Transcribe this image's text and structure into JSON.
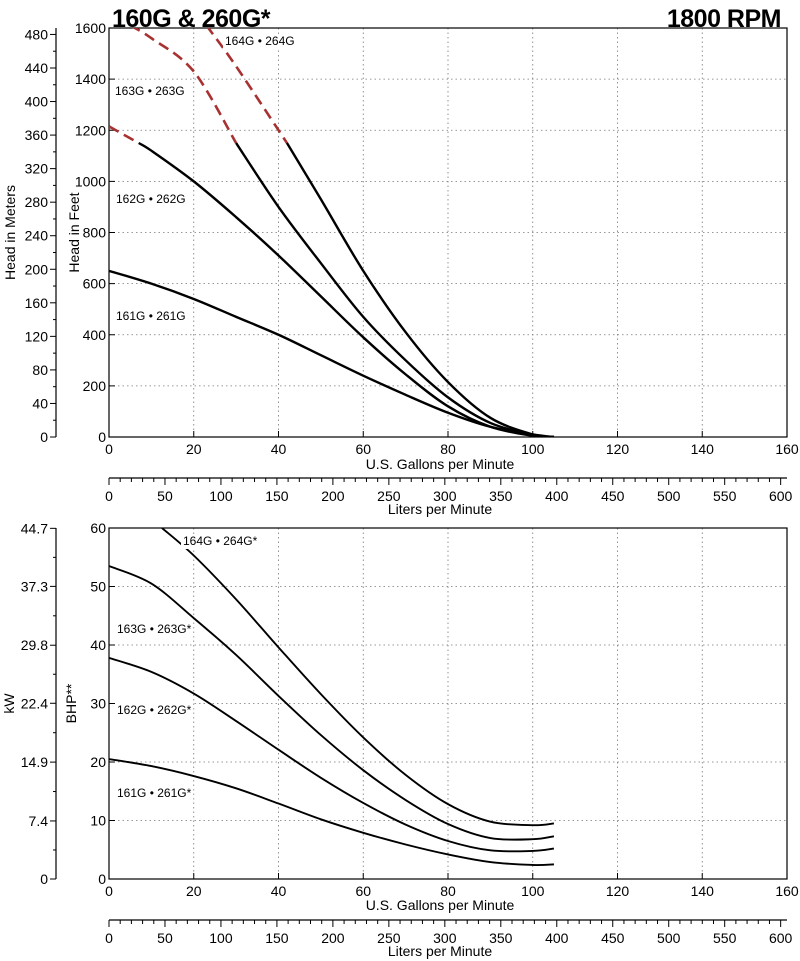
{
  "header": {
    "title_left": "160G & 260G*",
    "title_right": "1800 RPM"
  },
  "chart_data": [
    {
      "type": "line",
      "name": "head",
      "xlabel": "U.S. Gallons per Minute",
      "x2label": "Liters per Minute",
      "ylabel": "Head in Feet",
      "y2label": "Head in Meters",
      "xlim": [
        0,
        160
      ],
      "ylim": [
        0,
        1600
      ],
      "x_ticks": [
        0,
        20,
        40,
        60,
        80,
        100,
        120,
        140,
        160
      ],
      "y_ticks": [
        0,
        200,
        400,
        600,
        800,
        1000,
        1200,
        1400,
        1600
      ],
      "x2_ticks": [
        0,
        50,
        100,
        150,
        200,
        250,
        300,
        350,
        400,
        450,
        500,
        550,
        600
      ],
      "y2_ticks": [
        0,
        40,
        80,
        120,
        160,
        200,
        240,
        280,
        320,
        360,
        400,
        440,
        480
      ],
      "grid": true,
      "series": [
        {
          "name": "161G • 261G",
          "dashed_until_x": null,
          "x": [
            0,
            10,
            20,
            30,
            40,
            50,
            60,
            70,
            80,
            90,
            100,
            105
          ],
          "y": [
            650,
            600,
            540,
            470,
            400,
            320,
            240,
            165,
            95,
            40,
            10,
            0
          ]
        },
        {
          "name": "162G • 262G",
          "dashed_until_x": 7,
          "x": [
            0,
            7,
            10,
            20,
            30,
            40,
            50,
            60,
            70,
            80,
            90,
            100,
            105
          ],
          "y": [
            1215,
            1150,
            1120,
            1000,
            860,
            710,
            550,
            390,
            245,
            120,
            40,
            5,
            0
          ]
        },
        {
          "name": "163G • 263G",
          "dashed_until_x": 30,
          "x": [
            5,
            10,
            20,
            30,
            40,
            50,
            60,
            70,
            80,
            90,
            100,
            105
          ],
          "y": [
            1610,
            1560,
            1430,
            1150,
            900,
            680,
            470,
            300,
            155,
            55,
            8,
            0
          ]
        },
        {
          "name": "164G • 264G",
          "dashed_until_x": 42,
          "x": [
            23,
            30,
            42,
            50,
            60,
            70,
            80,
            90,
            100,
            105
          ],
          "y": [
            1610,
            1450,
            1150,
            930,
            650,
            410,
            215,
            75,
            10,
            0
          ]
        }
      ]
    },
    {
      "type": "line",
      "name": "power",
      "xlabel": "U.S. Gallons per Minute",
      "x2label": "Liters per Minute",
      "ylabel": "BHP**",
      "y2label": "kW",
      "xlim": [
        0,
        160
      ],
      "ylim": [
        0,
        60
      ],
      "x_ticks": [
        0,
        20,
        40,
        60,
        80,
        100,
        120,
        140,
        160
      ],
      "y_ticks": [
        0,
        10,
        20,
        30,
        40,
        50,
        60
      ],
      "x2_ticks": [
        0,
        50,
        100,
        150,
        200,
        250,
        300,
        350,
        400,
        450,
        500,
        550,
        600
      ],
      "y2_ticks": [
        "0",
        "7.4",
        "14.9",
        "22.4",
        "29.8",
        "37.3",
        "44.7"
      ],
      "grid": true,
      "series": [
        {
          "name": "161G • 261G*",
          "x": [
            0,
            10,
            20,
            30,
            40,
            50,
            60,
            70,
            80,
            90,
            100,
            105
          ],
          "y": [
            20.5,
            19.3,
            17.6,
            15.5,
            12.9,
            10.2,
            7.9,
            5.9,
            4.2,
            2.9,
            2.4,
            2.5
          ]
        },
        {
          "name": "162G • 262G*",
          "x": [
            0,
            10,
            20,
            30,
            40,
            50,
            60,
            70,
            80,
            90,
            100,
            105
          ],
          "y": [
            37.8,
            35.4,
            31.7,
            27.0,
            22.1,
            17.3,
            13.0,
            9.3,
            6.5,
            4.9,
            4.8,
            5.2
          ]
        },
        {
          "name": "163G • 263G*",
          "x": [
            0,
            10,
            20,
            30,
            40,
            50,
            60,
            70,
            80,
            90,
            100,
            105
          ],
          "y": [
            53.5,
            50.5,
            44.6,
            38.3,
            31.3,
            24.6,
            18.6,
            13.5,
            9.4,
            7.0,
            6.8,
            7.3
          ]
        },
        {
          "name": "164G • 264G*",
          "x": [
            12.5,
            20,
            30,
            40,
            50,
            60,
            70,
            80,
            90,
            100,
            105
          ],
          "y": [
            60,
            55.3,
            47.8,
            39.6,
            31.6,
            24.2,
            17.8,
            12.8,
            9.8,
            9.2,
            9.5
          ]
        }
      ]
    }
  ]
}
